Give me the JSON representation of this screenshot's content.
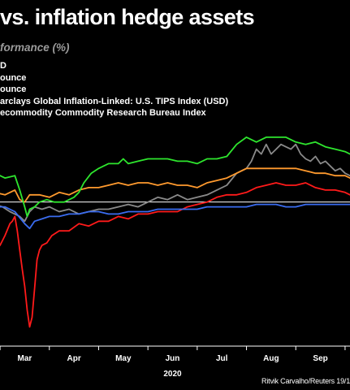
{
  "header": {
    "title": "vs. inflation hedge assets",
    "subtitle": "formance (%)"
  },
  "legend": [
    {
      "label": "D",
      "color": "#8a8a8a"
    },
    {
      "label": "ounce",
      "color": "#ff1a1a"
    },
    {
      "label": "ounce",
      "color": "#ff9a2e"
    },
    {
      "label": "arclays Global Inflation-Linked: U.S. TIPS Index (USD)",
      "color": "#3a6cf0"
    },
    {
      "label": "ecommodity Commodity Research Bureau Index",
      "color": "#2ee62e"
    }
  ],
  "credit": "Ritvik Carvalho/Reuters 19/1",
  "chart_data": {
    "type": "line",
    "title": "vs. inflation hedge assets",
    "subtitle": "formance (%)",
    "xlabel": "2020",
    "ylabel": "",
    "x_tick_labels": [
      "Mar",
      "Apr",
      "May",
      "Jun",
      "Jul",
      "Aug",
      "Sep"
    ],
    "x_tick_months": [
      3,
      4,
      5,
      6,
      7,
      8,
      9
    ],
    "x_domain_months": [
      2.4,
      9.6
    ],
    "ylim": [
      -60,
      30
    ],
    "grid": false,
    "baseline": 0,
    "series": [
      {
        "color": "#8a8a8a",
        "x": [
          2.4,
          2.55,
          2.7,
          2.8,
          2.9,
          3.0,
          3.1,
          3.2,
          3.35,
          3.5,
          3.7,
          3.9,
          4.1,
          4.3,
          4.5,
          4.7,
          4.9,
          5.1,
          5.3,
          5.5,
          5.7,
          5.9,
          6.1,
          6.3,
          6.5,
          6.7,
          6.9,
          7.1,
          7.3,
          7.5,
          7.6,
          7.7,
          7.8,
          7.9,
          8.0,
          8.1,
          8.2,
          8.3,
          8.4,
          8.5,
          8.6,
          8.7,
          8.8,
          8.9,
          9.0,
          9.1,
          9.2,
          9.3,
          9.4,
          9.5,
          9.6
        ],
        "y": [
          -1,
          -2,
          -4,
          -5,
          -6,
          -8,
          -4,
          -2,
          -3,
          -2,
          -4,
          -3,
          -5,
          -4,
          -3,
          -3,
          -2,
          -1,
          -2,
          0,
          2,
          1,
          3,
          1,
          2,
          3,
          5,
          7,
          12,
          14,
          17,
          22,
          20,
          24,
          20,
          22,
          24,
          23,
          22,
          24,
          20,
          18,
          17,
          19,
          16,
          17,
          15,
          13,
          14,
          12,
          11
        ]
      },
      {
        "color": "#ff1a1a",
        "x": [
          2.4,
          2.5,
          2.6,
          2.7,
          2.75,
          2.8,
          2.85,
          2.9,
          2.95,
          3.0,
          3.05,
          3.1,
          3.15,
          3.2,
          3.25,
          3.3,
          3.35,
          3.45,
          3.55,
          3.7,
          3.9,
          4.1,
          4.3,
          4.5,
          4.7,
          4.9,
          5.1,
          5.3,
          5.5,
          5.7,
          5.9,
          6.1,
          6.3,
          6.5,
          6.7,
          6.9,
          7.1,
          7.3,
          7.5,
          7.7,
          7.9,
          8.1,
          8.3,
          8.5,
          8.7,
          8.9,
          9.1,
          9.3,
          9.5,
          9.6
        ],
        "y": [
          -20,
          -18,
          -14,
          -9,
          -8,
          -6,
          -12,
          -20,
          -28,
          -35,
          -45,
          -52,
          -48,
          -36,
          -24,
          -20,
          -18,
          -17,
          -14,
          -12,
          -12,
          -9,
          -10,
          -8,
          -8,
          -6,
          -7,
          -5,
          -5,
          -4,
          -4,
          -4,
          -2,
          -1,
          0,
          2,
          3,
          3,
          4,
          6,
          7,
          8,
          7,
          7,
          8,
          6,
          5,
          5,
          4,
          3
        ]
      },
      {
        "color": "#ff9a2e",
        "x": [
          2.4,
          2.6,
          2.8,
          2.9,
          3.0,
          3.1,
          3.3,
          3.5,
          3.7,
          3.9,
          4.1,
          4.3,
          4.5,
          4.7,
          4.9,
          5.1,
          5.3,
          5.5,
          5.7,
          5.9,
          6.1,
          6.3,
          6.5,
          6.7,
          6.9,
          7.1,
          7.3,
          7.5,
          7.7,
          7.9,
          8.1,
          8.3,
          8.5,
          8.7,
          8.9,
          9.1,
          9.3,
          9.5,
          9.6
        ],
        "y": [
          4,
          3,
          5,
          1,
          0,
          3,
          3,
          2,
          4,
          3,
          5,
          6,
          6,
          7,
          8,
          7,
          8,
          8,
          7,
          8,
          7,
          7,
          6,
          8,
          9,
          10,
          12,
          14,
          14,
          14,
          14,
          14,
          14,
          13,
          12,
          12,
          11,
          11,
          10
        ]
      },
      {
        "color": "#3a6cf0",
        "x": [
          2.4,
          2.6,
          2.8,
          3.0,
          3.1,
          3.2,
          3.35,
          3.5,
          3.7,
          3.9,
          4.1,
          4.3,
          4.5,
          4.7,
          4.9,
          5.1,
          5.3,
          5.5,
          5.7,
          5.9,
          6.1,
          6.3,
          6.5,
          6.7,
          6.9,
          7.1,
          7.3,
          7.5,
          7.7,
          7.9,
          8.1,
          8.3,
          8.5,
          8.7,
          8.9,
          9.1,
          9.3,
          9.5,
          9.6
        ],
        "y": [
          -2,
          -2,
          -4,
          -9,
          -11,
          -8,
          -7,
          -6,
          -6,
          -5,
          -5,
          -4,
          -4,
          -5,
          -5,
          -4,
          -4,
          -4,
          -3,
          -3,
          -3,
          -3,
          -3,
          -2,
          -2,
          -2,
          -2,
          -2,
          -1,
          -1,
          -1,
          -2,
          -2,
          -1,
          -1,
          -1,
          -1,
          -1,
          -1
        ]
      },
      {
        "color": "#2ee62e",
        "x": [
          2.4,
          2.6,
          2.8,
          2.9,
          3.0,
          3.05,
          3.1,
          3.2,
          3.3,
          3.45,
          3.6,
          3.8,
          4.0,
          4.1,
          4.2,
          4.35,
          4.5,
          4.7,
          4.9,
          5.0,
          5.1,
          5.3,
          5.5,
          5.7,
          5.9,
          6.1,
          6.3,
          6.5,
          6.7,
          6.9,
          7.1,
          7.3,
          7.5,
          7.7,
          7.9,
          8.1,
          8.3,
          8.5,
          8.7,
          8.9,
          9.1,
          9.3,
          9.5,
          9.6
        ],
        "y": [
          12,
          10,
          11,
          5,
          -2,
          -6,
          -3,
          -2,
          0,
          1,
          0,
          0,
          2,
          4,
          8,
          12,
          14,
          16,
          16,
          18,
          16,
          17,
          18,
          18,
          18,
          17,
          17,
          16,
          18,
          18,
          19,
          24,
          27,
          25,
          27,
          27,
          27,
          25,
          24,
          25,
          23,
          22,
          21,
          20
        ]
      }
    ]
  }
}
